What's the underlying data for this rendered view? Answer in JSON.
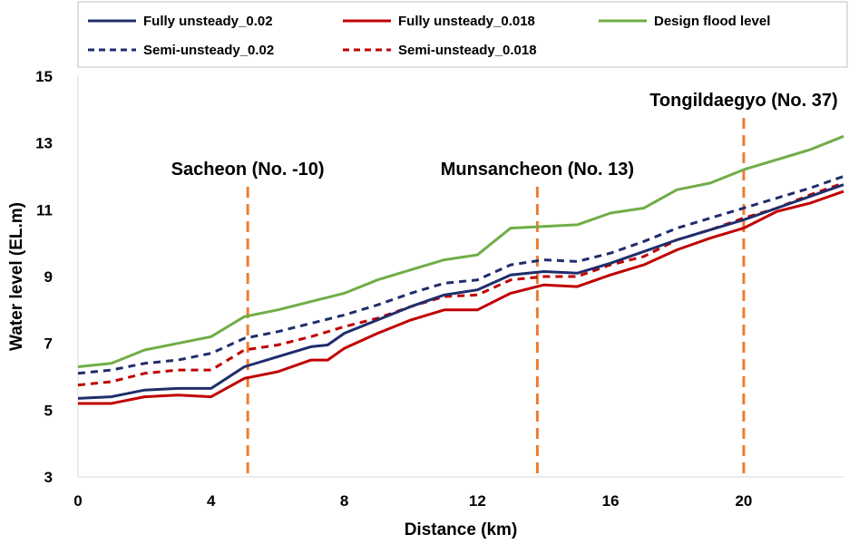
{
  "chart_data": {
    "type": "line",
    "title": "",
    "xlabel": "Distance (km)",
    "ylabel": "Water level (EL.m)",
    "xlim": [
      0,
      23
    ],
    "ylim": [
      3,
      15
    ],
    "xticks": [
      0,
      4,
      8,
      12,
      16,
      20
    ],
    "yticks": [
      3,
      5,
      7,
      9,
      11,
      13,
      15
    ],
    "grid": false,
    "legend_position": "top",
    "series": [
      {
        "name": "Fully unsteady_0.02",
        "color": "#1f2d6b",
        "style": "solid",
        "x": [
          0,
          1,
          2,
          3,
          4,
          5,
          6,
          7,
          7.5,
          8,
          9,
          10,
          11,
          12,
          13,
          14,
          15,
          16,
          17,
          18,
          19,
          20,
          21,
          22,
          23
        ],
        "y": [
          5.35,
          5.4,
          5.6,
          5.65,
          5.65,
          6.3,
          6.6,
          6.9,
          6.95,
          7.3,
          7.7,
          8.1,
          8.45,
          8.6,
          9.05,
          9.15,
          9.1,
          9.4,
          9.75,
          10.1,
          10.4,
          10.7,
          11.05,
          11.4,
          11.75
        ]
      },
      {
        "name": "Fully unsteady_0.018",
        "color": "#c00000",
        "style": "solid",
        "x": [
          0,
          1,
          2,
          3,
          4,
          5,
          6,
          7,
          7.5,
          8,
          9,
          10,
          11,
          12,
          13,
          14,
          15,
          16,
          17,
          18,
          19,
          20,
          21,
          22,
          23
        ],
        "y": [
          5.2,
          5.2,
          5.4,
          5.45,
          5.4,
          5.95,
          6.15,
          6.5,
          6.5,
          6.85,
          7.3,
          7.7,
          8.0,
          8.0,
          8.5,
          8.75,
          8.7,
          9.05,
          9.35,
          9.8,
          10.15,
          10.45,
          10.95,
          11.2,
          11.55
        ]
      },
      {
        "name": "Design flood level",
        "color": "#70ad47",
        "style": "solid",
        "x": [
          0,
          1,
          2,
          3,
          4,
          5,
          6,
          7,
          8,
          9,
          10,
          11,
          12,
          13,
          14,
          15,
          16,
          17,
          18,
          19,
          20,
          21,
          22,
          23
        ],
        "y": [
          6.3,
          6.4,
          6.8,
          7.0,
          7.2,
          7.8,
          8.0,
          8.25,
          8.5,
          8.9,
          9.2,
          9.5,
          9.65,
          10.45,
          10.5,
          10.55,
          10.9,
          11.05,
          11.6,
          11.8,
          12.2,
          12.5,
          12.8,
          13.2
        ]
      },
      {
        "name": "Semi-unsteady_0.02",
        "color": "#1f2d6b",
        "style": "dashed",
        "x": [
          0,
          1,
          2,
          3,
          4,
          5,
          6,
          7,
          8,
          9,
          10,
          11,
          12,
          13,
          14,
          15,
          16,
          17,
          18,
          19,
          20,
          21,
          22,
          23
        ],
        "y": [
          6.1,
          6.2,
          6.4,
          6.5,
          6.7,
          7.15,
          7.35,
          7.6,
          7.85,
          8.15,
          8.5,
          8.8,
          8.9,
          9.35,
          9.5,
          9.45,
          9.7,
          10.05,
          10.45,
          10.75,
          11.05,
          11.35,
          11.65,
          12.0
        ]
      },
      {
        "name": "Semi-unsteady_0.018",
        "color": "#c00000",
        "style": "dashed",
        "x": [
          0,
          1,
          2,
          3,
          4,
          5,
          6,
          7,
          8,
          9,
          10,
          11,
          12,
          13,
          14,
          15,
          16,
          17,
          18,
          19,
          20,
          21,
          22,
          23
        ],
        "y": [
          5.75,
          5.85,
          6.1,
          6.2,
          6.2,
          6.8,
          6.95,
          7.2,
          7.5,
          7.75,
          8.1,
          8.4,
          8.45,
          8.9,
          9.0,
          9.0,
          9.35,
          9.6,
          10.1,
          10.4,
          10.75,
          11.05,
          11.45,
          11.8
        ]
      }
    ],
    "reference_lines": [
      {
        "label": "Sacheon (No. -10)",
        "x": 5.1,
        "color": "#ed7d31"
      },
      {
        "label": "Munsancheon (No. 13)",
        "x": 13.8,
        "color": "#ed7d31"
      },
      {
        "label": "Tongildaegyo (No. 37)",
        "x": 20.0,
        "color": "#ed7d31"
      }
    ]
  }
}
